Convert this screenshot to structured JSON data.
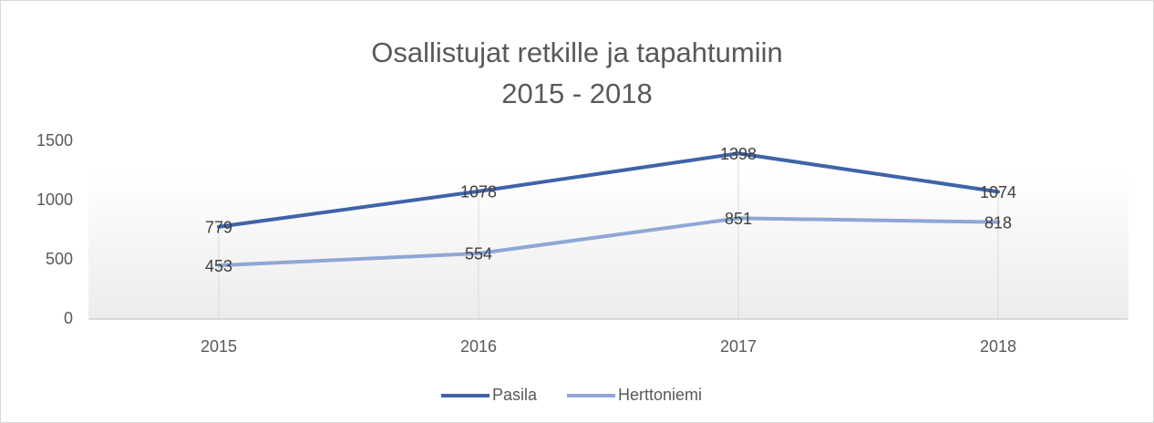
{
  "chart_data": {
    "type": "line",
    "title": "Osallistujat retkille ja tapahtumiin",
    "subtitle": "2015 - 2018",
    "categories": [
      "2015",
      "2016",
      "2017",
      "2018"
    ],
    "series": [
      {
        "name": "Pasila",
        "color": "#3e64a8",
        "values": [
          779,
          1078,
          1398,
          1074
        ]
      },
      {
        "name": "Herttoniemi",
        "color": "#8fa7d6",
        "values": [
          453,
          554,
          851,
          818
        ]
      }
    ],
    "ylim": [
      0,
      1500
    ],
    "yticks": [
      0,
      500,
      1000,
      1500
    ],
    "grid": "x",
    "legend": "bottom",
    "data_labels": true
  }
}
